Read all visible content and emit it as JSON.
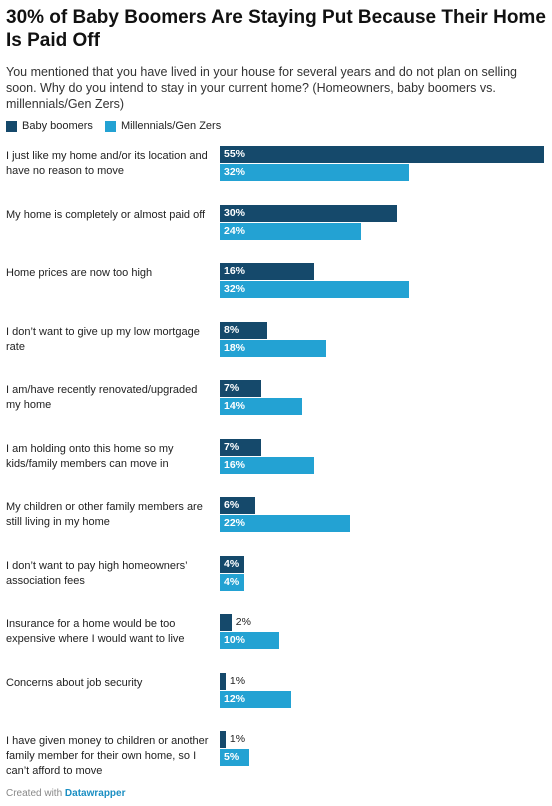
{
  "chart_data": {
    "type": "bar",
    "orientation": "horizontal",
    "title": "30% of Baby Boomers Are Staying Put Because Their Home Is Paid Off",
    "subtitle": "You mentioned that you have lived in your house for several years and do not plan on selling soon. Why do you intend to stay in your current home? (Homeowners, baby boomers vs. millennials/Gen Zers)",
    "categories": [
      "I just like my home and/or its location and have no reason to move",
      "My home is completely or almost paid off",
      "Home prices are now too high",
      "I don’t want to give up my low mortgage rate",
      "I am/have recently renovated/upgraded my home",
      "I am holding onto this home so my kids/family members can move in",
      "My children or other family members are still living in my home",
      "I don’t want to pay high homeowners’ association fees",
      "Insurance for a home would be too expensive where I would want to live",
      "Concerns about job security",
      "I have given money to children or another family member for their own home, so I can’t afford to move"
    ],
    "series": [
      {
        "name": "Baby boomers",
        "color": "#15496b",
        "values": [
          55,
          30,
          16,
          8,
          7,
          7,
          6,
          4,
          2,
          1,
          1
        ],
        "value_labels": [
          "55%",
          "30%",
          "16%",
          "8%",
          "7%",
          "7%",
          "6%",
          "4%",
          "2%",
          "1%",
          "1%"
        ]
      },
      {
        "name": "Millennials/Gen Zers",
        "color": "#23a2d3",
        "values": [
          32,
          24,
          32,
          18,
          14,
          16,
          22,
          4,
          10,
          12,
          5
        ],
        "value_labels": [
          "32%",
          "24%",
          "32%",
          "18%",
          "14%",
          "16%",
          "22%",
          "4%",
          "10%",
          "12%",
          "5%"
        ]
      }
    ],
    "footer": {
      "text": "Created with",
      "link": "Datawrapper"
    }
  }
}
